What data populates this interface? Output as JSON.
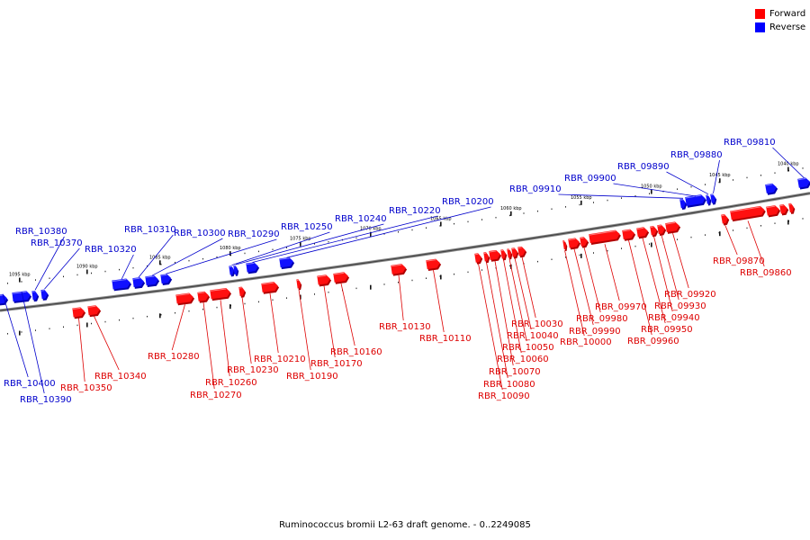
{
  "legend": {
    "forward": {
      "label": "Forward",
      "color": "#ff0000"
    },
    "reverse": {
      "label": "Reverse",
      "color": "#0000ff"
    }
  },
  "caption": "Ruminococcus bromii L2-63 draft genome. - 0..2249085",
  "tick_labels": [
    "1095 kbp",
    "1090 kbp",
    "1085 kbp",
    "1080 kbp",
    "1075 kbp",
    "1070 kbp",
    "1065 kbp",
    "1060 kbp",
    "1055 kbp",
    "1050 kbp",
    "1045 kbp",
    "1040 kbp"
  ],
  "genes": [
    {
      "label": "RBR_10400",
      "strand": "reverse"
    },
    {
      "label": "RBR_10390",
      "strand": "reverse"
    },
    {
      "label": "RBR_10380",
      "strand": "reverse"
    },
    {
      "label": "RBR_10370",
      "strand": "reverse"
    },
    {
      "label": "RBR_10350",
      "strand": "forward"
    },
    {
      "label": "RBR_10340",
      "strand": "forward"
    },
    {
      "label": "RBR_10320",
      "strand": "reverse"
    },
    {
      "label": "RBR_10310",
      "strand": "reverse"
    },
    {
      "label": "RBR_10300",
      "strand": "reverse"
    },
    {
      "label": "RBR_10290",
      "strand": "reverse"
    },
    {
      "label": "RBR_10280",
      "strand": "forward"
    },
    {
      "label": "RBR_10270",
      "strand": "forward"
    },
    {
      "label": "RBR_10260",
      "strand": "forward"
    },
    {
      "label": "RBR_10250",
      "strand": "reverse"
    },
    {
      "label": "RBR_10240",
      "strand": "reverse"
    },
    {
      "label": "RBR_10230",
      "strand": "forward"
    },
    {
      "label": "RBR_10220",
      "strand": "reverse"
    },
    {
      "label": "RBR_10210",
      "strand": "forward"
    },
    {
      "label": "RBR_10200",
      "strand": "reverse"
    },
    {
      "label": "RBR_10190",
      "strand": "forward"
    },
    {
      "label": "RBR_10170",
      "strand": "forward"
    },
    {
      "label": "RBR_10160",
      "strand": "forward"
    },
    {
      "label": "RBR_10130",
      "strand": "forward"
    },
    {
      "label": "RBR_10110",
      "strand": "forward"
    },
    {
      "label": "RBR_10090",
      "strand": "forward"
    },
    {
      "label": "RBR_10080",
      "strand": "forward"
    },
    {
      "label": "RBR_10070",
      "strand": "forward"
    },
    {
      "label": "RBR_10060",
      "strand": "forward"
    },
    {
      "label": "RBR_10050",
      "strand": "forward"
    },
    {
      "label": "RBR_10040",
      "strand": "forward"
    },
    {
      "label": "RBR_10030",
      "strand": "forward"
    },
    {
      "label": "RBR_10000",
      "strand": "forward"
    },
    {
      "label": "RBR_09990",
      "strand": "forward"
    },
    {
      "label": "RBR_09980",
      "strand": "forward"
    },
    {
      "label": "RBR_09970",
      "strand": "forward"
    },
    {
      "label": "RBR_09960",
      "strand": "forward"
    },
    {
      "label": "RBR_09950",
      "strand": "forward"
    },
    {
      "label": "RBR_09940",
      "strand": "forward"
    },
    {
      "label": "RBR_09930",
      "strand": "forward"
    },
    {
      "label": "RBR_09920",
      "strand": "forward"
    },
    {
      "label": "RBR_09910",
      "strand": "reverse"
    },
    {
      "label": "RBR_09900",
      "strand": "reverse"
    },
    {
      "label": "RBR_09890",
      "strand": "reverse"
    },
    {
      "label": "RBR_09880",
      "strand": "reverse"
    },
    {
      "label": "RBR_09870",
      "strand": "forward"
    },
    {
      "label": "RBR_09860",
      "strand": "forward"
    },
    {
      "label": "RBR_09810",
      "strand": "reverse"
    }
  ]
}
